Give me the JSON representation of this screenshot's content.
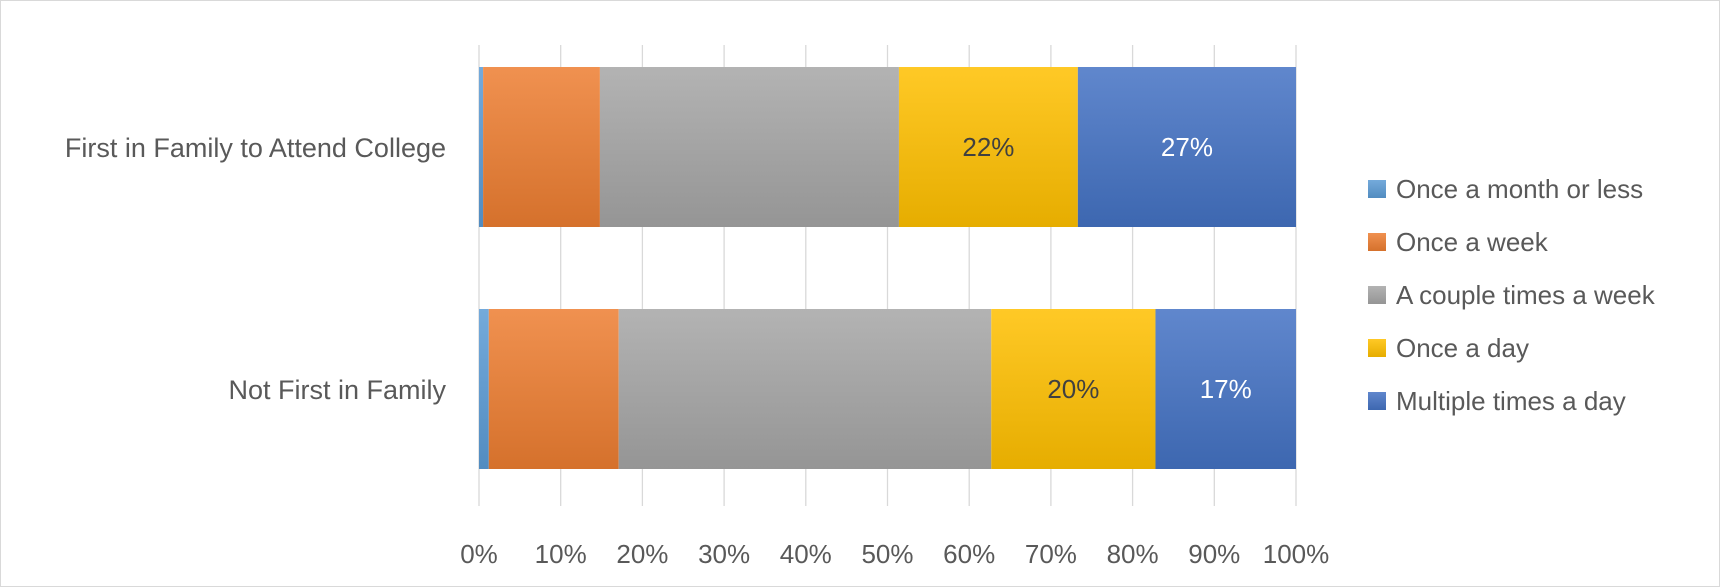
{
  "chart_data": {
    "type": "bar",
    "orientation": "horizontal",
    "stacked": "percent",
    "title": "",
    "xlabel": "",
    "ylabel": "",
    "xlim": [
      0,
      100
    ],
    "x_ticks": [
      "0%",
      "10%",
      "20%",
      "30%",
      "40%",
      "50%",
      "60%",
      "70%",
      "80%",
      "90%",
      "100%"
    ],
    "grid": "vertical",
    "legend_position": "right",
    "categories": [
      "First in Family to Attend College",
      "Not First in Family"
    ],
    "series": [
      {
        "name": "Once a month or less",
        "color": "#5b9bd5",
        "values": [
          0.5,
          1.2
        ],
        "labels": [
          "",
          ""
        ]
      },
      {
        "name": "Once a week",
        "color": "#ed7d31",
        "values": [
          14.3,
          15.9
        ],
        "labels": [
          "",
          ""
        ]
      },
      {
        "name": "A couple times a week",
        "color": "#a5a5a5",
        "values": [
          36.6,
          45.6
        ],
        "labels": [
          "",
          ""
        ]
      },
      {
        "name": "Once a day",
        "color": "#ffc000",
        "values": [
          21.9,
          20.1
        ],
        "labels": [
          "22%",
          "20%"
        ]
      },
      {
        "name": "Multiple times a day",
        "color": "#4472c4",
        "values": [
          26.7,
          17.2
        ],
        "labels": [
          "27%",
          "17%"
        ]
      }
    ]
  }
}
